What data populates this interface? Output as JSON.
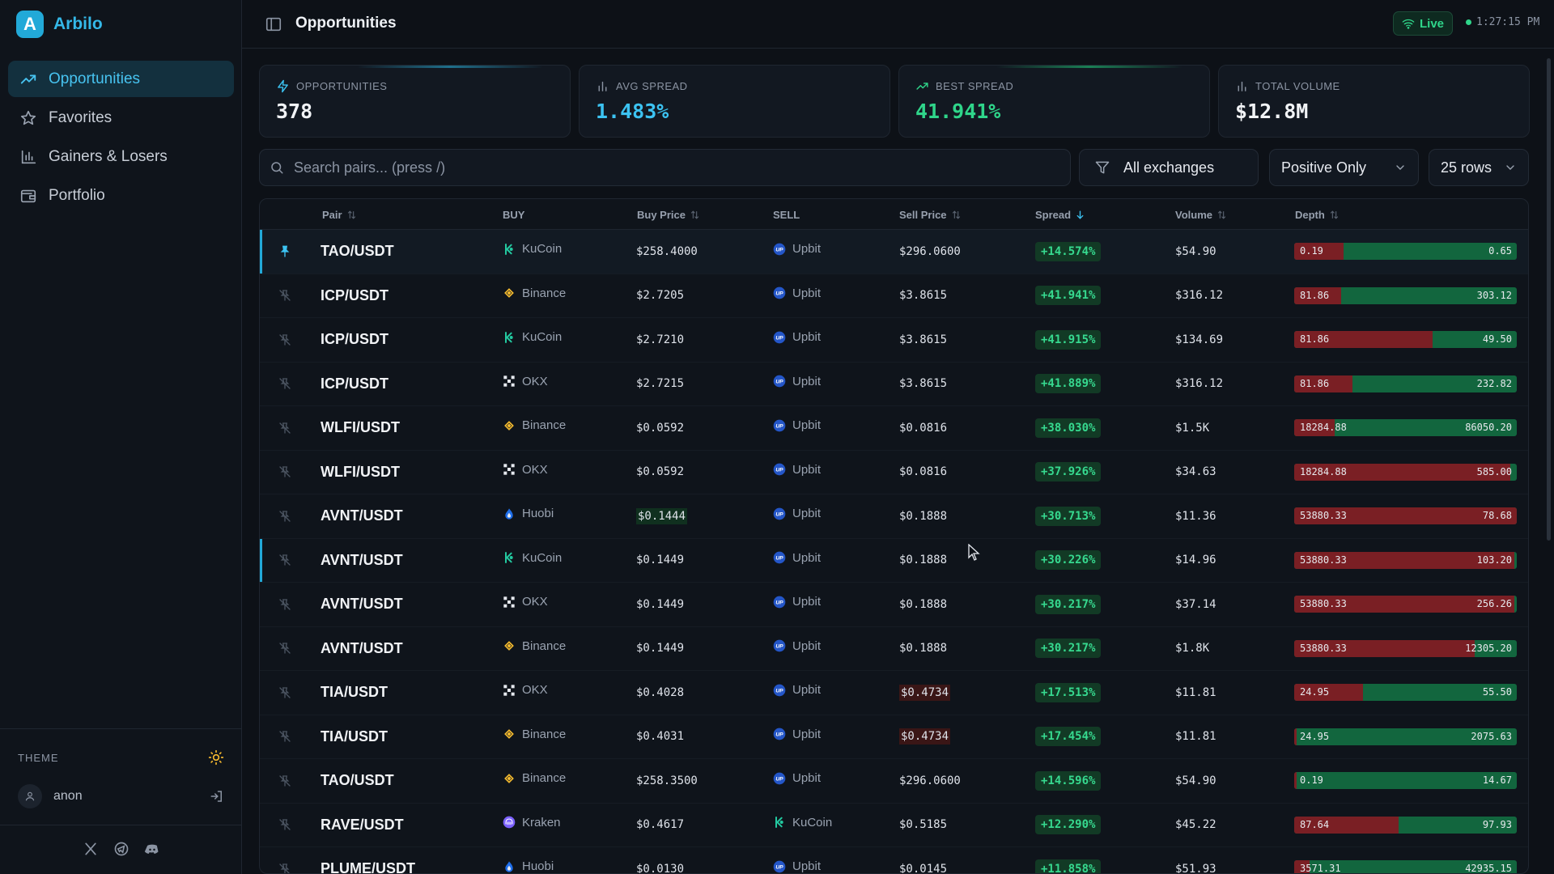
{
  "app": {
    "logo_letter": "A",
    "name": "Arbilo"
  },
  "nav": [
    {
      "label": "Opportunities",
      "icon": "trending-up-icon",
      "active": true
    },
    {
      "label": "Favorites",
      "icon": "star-icon"
    },
    {
      "label": "Gainers & Losers",
      "icon": "bar-chart-icon"
    },
    {
      "label": "Portfolio",
      "icon": "wallet-icon"
    }
  ],
  "sidebar_bottom": {
    "theme_label": "THEME",
    "user": "anon"
  },
  "header": {
    "title": "Opportunities",
    "live_label": "Live",
    "time": "1:27:15 PM"
  },
  "stats": [
    {
      "label": "OPPORTUNITIES",
      "value": "378",
      "color": "#f1f3f6",
      "accent": "#1f6f8b"
    },
    {
      "label": "AVG SPREAD",
      "value": "1.483%",
      "color": "#3cc3f2",
      "accent": ""
    },
    {
      "label": "BEST SPREAD",
      "value": "41.941%",
      "color": "#2fd58a",
      "accent": "#1a7f55"
    },
    {
      "label": "TOTAL VOLUME",
      "value": "$12.8M",
      "color": "#f1f3f6",
      "accent": ""
    }
  ],
  "toolbar": {
    "search_placeholder": "Search pairs... (press /)",
    "exchange_filter": "All exchanges",
    "spread_filter": "Positive Only",
    "rows": "25 rows"
  },
  "columns": {
    "pair": "Pair",
    "buy": "BUY",
    "buy_price": "Buy Price",
    "sell": "SELL",
    "sell_price": "Sell Price",
    "spread": "Spread",
    "volume": "Volume",
    "depth": "Depth"
  },
  "rows": [
    {
      "pair": "TAO/USDT",
      "buy": "KuCoin",
      "buy_price": "$258.4000",
      "sell": "Upbit",
      "sell_price": "$296.0600",
      "spread": "+14.574%",
      "volume": "$54.90",
      "depth_left": "0.19",
      "depth_right": "0.65",
      "red_fraction": 0.22,
      "pinned": true
    },
    {
      "pair": "ICP/USDT",
      "buy": "Binance",
      "buy_price": "$2.7205",
      "sell": "Upbit",
      "sell_price": "$3.8615",
      "spread": "+41.941%",
      "volume": "$316.12",
      "depth_left": "81.86",
      "depth_right": "303.12",
      "red_fraction": 0.21
    },
    {
      "pair": "ICP/USDT",
      "buy": "KuCoin",
      "buy_price": "$2.7210",
      "sell": "Upbit",
      "sell_price": "$3.8615",
      "spread": "+41.915%",
      "volume": "$134.69",
      "depth_left": "81.86",
      "depth_right": "49.50",
      "red_fraction": 0.62
    },
    {
      "pair": "ICP/USDT",
      "buy": "OKX",
      "buy_price": "$2.7215",
      "sell": "Upbit",
      "sell_price": "$3.8615",
      "spread": "+41.889%",
      "volume": "$316.12",
      "depth_left": "81.86",
      "depth_right": "232.82",
      "red_fraction": 0.26
    },
    {
      "pair": "WLFI/USDT",
      "buy": "Binance",
      "buy_price": "$0.0592",
      "sell": "Upbit",
      "sell_price": "$0.0816",
      "spread": "+38.030%",
      "volume": "$1.5K",
      "depth_left": "18284.88",
      "depth_right": "86050.20",
      "red_fraction": 0.18
    },
    {
      "pair": "WLFI/USDT",
      "buy": "OKX",
      "buy_price": "$0.0592",
      "sell": "Upbit",
      "sell_price": "$0.0816",
      "spread": "+37.926%",
      "volume": "$34.63",
      "depth_left": "18284.88",
      "depth_right": "585.00",
      "red_fraction": 0.97
    },
    {
      "pair": "AVNT/USDT",
      "buy": "Huobi",
      "buy_price": "$0.1444",
      "sell": "Upbit",
      "sell_price": "$0.1888",
      "spread": "+30.713%",
      "volume": "$11.36",
      "depth_left": "53880.33",
      "depth_right": "78.68",
      "red_fraction": 1.0,
      "buy_hl": "green"
    },
    {
      "pair": "AVNT/USDT",
      "buy": "KuCoin",
      "buy_price": "$0.1449",
      "sell": "Upbit",
      "sell_price": "$0.1888",
      "spread": "+30.226%",
      "volume": "$14.96",
      "depth_left": "53880.33",
      "depth_right": "103.20",
      "red_fraction": 0.99,
      "marked": true
    },
    {
      "pair": "AVNT/USDT",
      "buy": "OKX",
      "buy_price": "$0.1449",
      "sell": "Upbit",
      "sell_price": "$0.1888",
      "spread": "+30.217%",
      "volume": "$37.14",
      "depth_left": "53880.33",
      "depth_right": "256.26",
      "red_fraction": 0.99
    },
    {
      "pair": "AVNT/USDT",
      "buy": "Binance",
      "buy_price": "$0.1449",
      "sell": "Upbit",
      "sell_price": "$0.1888",
      "spread": "+30.217%",
      "volume": "$1.8K",
      "depth_left": "53880.33",
      "depth_right": "12305.20",
      "red_fraction": 0.81
    },
    {
      "pair": "TIA/USDT",
      "buy": "OKX",
      "buy_price": "$0.4028",
      "sell": "Upbit",
      "sell_price": "$0.4734",
      "spread": "+17.513%",
      "volume": "$11.81",
      "depth_left": "24.95",
      "depth_right": "55.50",
      "red_fraction": 0.31,
      "sell_hl": "red"
    },
    {
      "pair": "TIA/USDT",
      "buy": "Binance",
      "buy_price": "$0.4031",
      "sell": "Upbit",
      "sell_price": "$0.4734",
      "spread": "+17.454%",
      "volume": "$11.81",
      "depth_left": "24.95",
      "depth_right": "2075.63",
      "red_fraction": 0.01,
      "sell_hl": "red"
    },
    {
      "pair": "TAO/USDT",
      "buy": "Binance",
      "buy_price": "$258.3500",
      "sell": "Upbit",
      "sell_price": "$296.0600",
      "spread": "+14.596%",
      "volume": "$54.90",
      "depth_left": "0.19",
      "depth_right": "14.67",
      "red_fraction": 0.01
    },
    {
      "pair": "RAVE/USDT",
      "buy": "Kraken",
      "buy_price": "$0.4617",
      "sell": "KuCoin",
      "sell_price": "$0.5185",
      "spread": "+12.290%",
      "volume": "$45.22",
      "depth_left": "87.64",
      "depth_right": "97.93",
      "red_fraction": 0.47
    },
    {
      "pair": "PLUME/USDT",
      "buy": "Huobi",
      "buy_price": "$0.0130",
      "sell": "Upbit",
      "sell_price": "$0.0145",
      "spread": "+11.858%",
      "volume": "$51.93",
      "depth_left": "3571.31",
      "depth_right": "42935.15",
      "red_fraction": 0.07
    }
  ]
}
